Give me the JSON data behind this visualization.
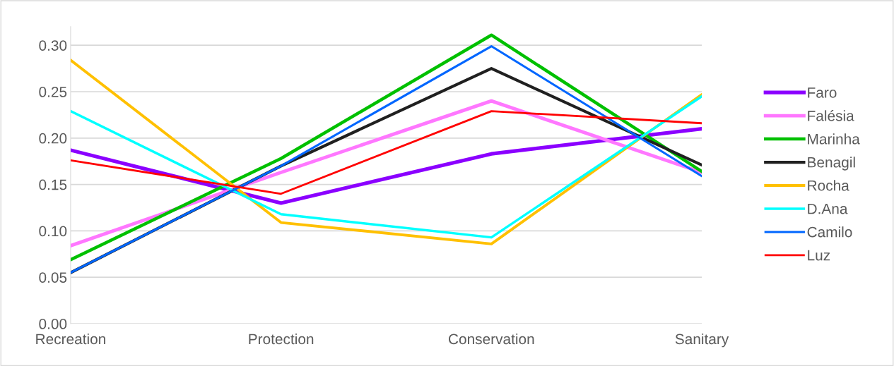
{
  "chart_data": {
    "type": "line",
    "categories": [
      "Recreation",
      "Protection",
      "Conservation",
      "Sanitary"
    ],
    "ylim": [
      0,
      0.32
    ],
    "yticks": [
      {
        "value": 0,
        "label": "0.00"
      },
      {
        "value": 0.05,
        "label": "0.05"
      },
      {
        "value": 0.1,
        "label": "0.10"
      },
      {
        "value": 0.15,
        "label": "0.15"
      },
      {
        "value": 0.2,
        "label": "0.20"
      },
      {
        "value": 0.25,
        "label": "0.25"
      },
      {
        "value": 0.3,
        "label": "0.30"
      }
    ],
    "grid": "y",
    "legend": "right",
    "marker": "none",
    "line_style": "solid",
    "series": [
      {
        "name": "Faro",
        "color": "#8b00ff",
        "values": [
          0.187,
          0.13,
          0.183,
          0.21
        ]
      },
      {
        "name": "Falésia",
        "color": "#ff77ff",
        "values": [
          0.084,
          0.163,
          0.24,
          0.163
        ]
      },
      {
        "name": "Marinha",
        "color": "#00c000",
        "values": [
          0.069,
          0.178,
          0.311,
          0.164
        ]
      },
      {
        "name": "Benagil",
        "color": "#202020",
        "values": [
          0.055,
          0.17,
          0.275,
          0.171
        ]
      },
      {
        "name": "Rocha",
        "color": "#ffc000",
        "values": [
          0.284,
          0.109,
          0.086,
          0.247
        ]
      },
      {
        "name": "D.Ana",
        "color": "#00ffff",
        "values": [
          0.229,
          0.118,
          0.093,
          0.245
        ]
      },
      {
        "name": "Camilo",
        "color": "#0066ff",
        "values": [
          0.055,
          0.17,
          0.299,
          0.159
        ]
      },
      {
        "name": "Luz",
        "color": "#ff0000",
        "values": [
          0.176,
          0.14,
          0.229,
          0.216
        ]
      }
    ]
  }
}
